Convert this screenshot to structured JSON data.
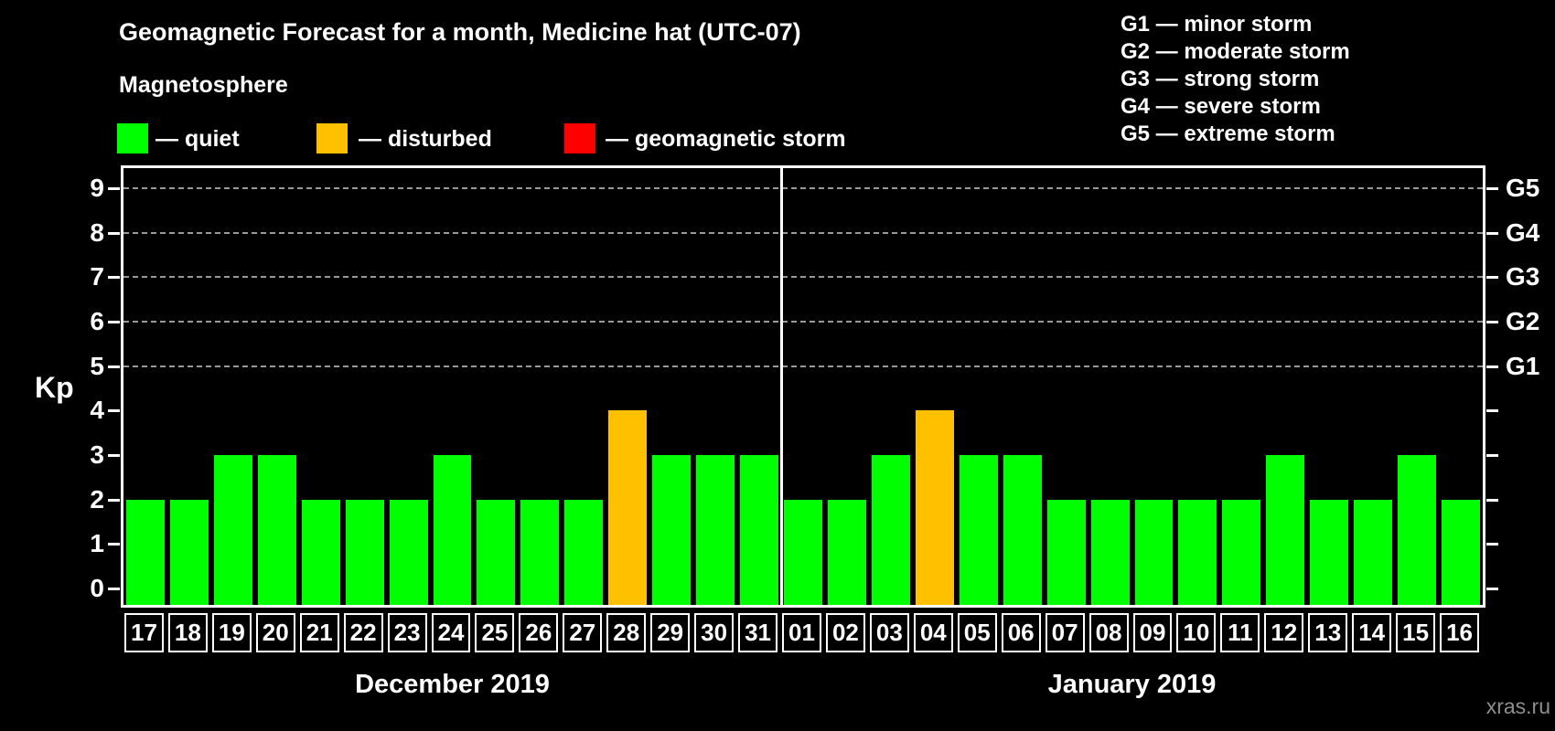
{
  "header": {
    "title": "Geomagnetic Forecast for a month, Medicine hat (UTC-07)",
    "subtitle": "Magnetosphere",
    "legend": [
      {
        "key": "quiet",
        "label": "— quiet",
        "color": "#00ff00"
      },
      {
        "key": "disturbed",
        "label": "— disturbed",
        "color": "#ffc000"
      },
      {
        "key": "storm",
        "label": "— geomagnetic storm",
        "color": "#ff0000"
      }
    ],
    "g_levels": [
      "G1 — minor storm",
      "G2 — moderate storm",
      "G3 — strong storm",
      "G4 — severe storm",
      "G5 — extreme storm"
    ]
  },
  "watermark": "xras.ru",
  "chart_data": {
    "type": "bar",
    "title": "Geomagnetic Forecast for a month, Medicine hat (UTC-07)",
    "ylabel": "Kp",
    "ylim": [
      0,
      9
    ],
    "yticks": [
      0,
      1,
      2,
      3,
      4,
      5,
      6,
      7,
      8,
      9
    ],
    "gridlines_at_kp": [
      5,
      6,
      7,
      8,
      9
    ],
    "grid": "dashed horizontal at G-storm levels only",
    "legend_position": "top-left",
    "right_axis": [
      {
        "kp": 5,
        "label": "G1"
      },
      {
        "kp": 6,
        "label": "G2"
      },
      {
        "kp": 7,
        "label": "G3"
      },
      {
        "kp": 8,
        "label": "G4"
      },
      {
        "kp": 9,
        "label": "G5"
      }
    ],
    "status_colors": {
      "quiet": "#00ff00",
      "disturbed": "#ffc000",
      "storm": "#ff0000"
    },
    "months": [
      {
        "label": "December 2019",
        "days": [
          "17",
          "18",
          "19",
          "20",
          "21",
          "22",
          "23",
          "24",
          "25",
          "26",
          "27",
          "28",
          "29",
          "30",
          "31"
        ],
        "values": [
          2,
          2,
          3,
          3,
          2,
          2,
          2,
          3,
          2,
          2,
          2,
          4,
          3,
          3,
          3
        ],
        "status": [
          "quiet",
          "quiet",
          "quiet",
          "quiet",
          "quiet",
          "quiet",
          "quiet",
          "quiet",
          "quiet",
          "quiet",
          "quiet",
          "disturbed",
          "quiet",
          "quiet",
          "quiet"
        ]
      },
      {
        "label": "January 2019",
        "days": [
          "01",
          "02",
          "03",
          "04",
          "05",
          "06",
          "07",
          "08",
          "09",
          "10",
          "11",
          "12",
          "13",
          "14",
          "15",
          "16"
        ],
        "values": [
          2,
          2,
          3,
          4,
          3,
          3,
          2,
          2,
          2,
          2,
          2,
          3,
          2,
          2,
          3,
          2
        ],
        "status": [
          "quiet",
          "quiet",
          "quiet",
          "disturbed",
          "quiet",
          "quiet",
          "quiet",
          "quiet",
          "quiet",
          "quiet",
          "quiet",
          "quiet",
          "quiet",
          "quiet",
          "quiet",
          "quiet"
        ]
      }
    ]
  }
}
